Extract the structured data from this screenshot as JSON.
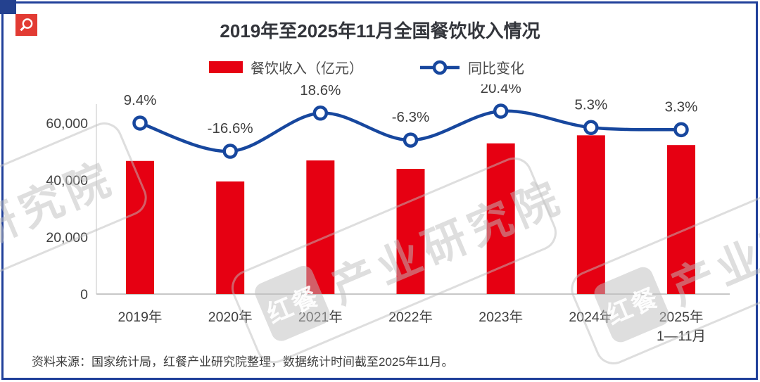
{
  "page": {
    "source_note": "资料来源：国家统计局，红餐产业研究院整理，数据统计时间截至2025年11月。",
    "border_color": "#20409a",
    "accent_red": "#e60012",
    "accent_blue": "#17479e"
  },
  "watermark": {
    "logo_text": "红餐",
    "text": "产业研究院"
  },
  "chart_data": {
    "type": "bar+line",
    "title": "2019年至2025年11月全国餐饮收入情况",
    "categories": [
      [
        "2019年"
      ],
      [
        "2020年"
      ],
      [
        "2021年"
      ],
      [
        "2022年"
      ],
      [
        "2023年"
      ],
      [
        "2024年"
      ],
      [
        "2025年",
        "1—11月"
      ]
    ],
    "series": [
      {
        "name": "餐饮收入（亿元）",
        "type": "bar",
        "color": "#e60012",
        "values": [
          46721,
          39527,
          46895,
          43941,
          52890,
          55718,
          52300
        ]
      },
      {
        "name": "同比变化",
        "type": "line",
        "color": "#17479e",
        "values": [
          9.4,
          -16.6,
          18.6,
          -6.3,
          20.4,
          5.3,
          3.3
        ],
        "labels": [
          "9.4%",
          "-16.6%",
          "18.6%",
          "-6.3%",
          "20.4%",
          "5.3%",
          "3.3%"
        ]
      }
    ],
    "yticks": [
      {
        "value": 0,
        "label": "0"
      },
      {
        "value": 20000,
        "label": "20,000"
      },
      {
        "value": 40000,
        "label": "40,000"
      },
      {
        "value": 60000,
        "label": "60,000"
      }
    ],
    "ylim": [
      0,
      60000
    ],
    "ylabel": "",
    "xlabel": "",
    "grid": false,
    "secondary_axis_visible": false,
    "legend_position": "top"
  }
}
